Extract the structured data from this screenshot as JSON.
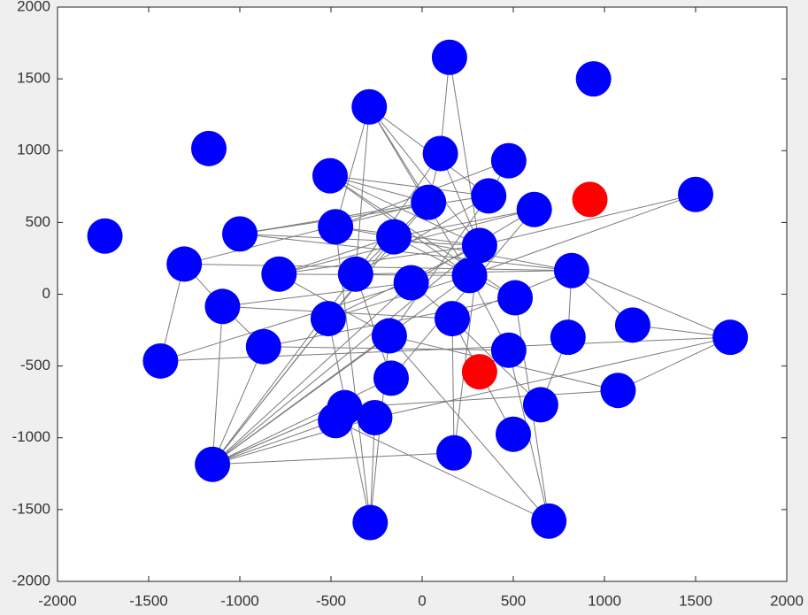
{
  "chart_data": {
    "type": "scatter",
    "x": [
      150,
      940,
      -290,
      -1170,
      100,
      475,
      -505,
      35,
      365,
      615,
      920,
      1500,
      -1740,
      -1000,
      -475,
      -155,
      315,
      -1305,
      -785,
      -365,
      -60,
      260,
      820,
      -1095,
      510,
      -515,
      165,
      -180,
      800,
      1155,
      1690,
      -870,
      475,
      -1435,
      315,
      -170,
      1075,
      650,
      -425,
      -260,
      -475,
      500,
      175,
      -1150,
      -285,
      695
    ],
    "values": [
      1650,
      1500,
      1305,
      1015,
      980,
      930,
      825,
      640,
      685,
      590,
      660,
      695,
      405,
      420,
      470,
      400,
      340,
      210,
      140,
      140,
      80,
      130,
      165,
      -85,
      -25,
      -170,
      -170,
      -290,
      -300,
      -215,
      -300,
      -365,
      -390,
      -465,
      -540,
      -585,
      -670,
      -770,
      -790,
      -860,
      -880,
      -975,
      -1105,
      -1185,
      -1590,
      -1580
    ],
    "colors": [
      "#0000ff",
      "#0000ff",
      "#0000ff",
      "#0000ff",
      "#0000ff",
      "#0000ff",
      "#0000ff",
      "#0000ff",
      "#0000ff",
      "#0000ff",
      "#ff0000",
      "#0000ff",
      "#0000ff",
      "#0000ff",
      "#0000ff",
      "#0000ff",
      "#0000ff",
      "#0000ff",
      "#0000ff",
      "#0000ff",
      "#0000ff",
      "#0000ff",
      "#0000ff",
      "#0000ff",
      "#0000ff",
      "#0000ff",
      "#0000ff",
      "#0000ff",
      "#0000ff",
      "#0000ff",
      "#0000ff",
      "#0000ff",
      "#0000ff",
      "#0000ff",
      "#ff0000",
      "#0000ff",
      "#0000ff",
      "#0000ff",
      "#0000ff",
      "#0000ff",
      "#0000ff",
      "#0000ff",
      "#0000ff",
      "#0000ff",
      "#0000ff",
      "#0000ff"
    ],
    "edges": [
      [
        0,
        4
      ],
      [
        0,
        16
      ],
      [
        2,
        7
      ],
      [
        2,
        14
      ],
      [
        2,
        19
      ],
      [
        2,
        21
      ],
      [
        2,
        8
      ],
      [
        2,
        16
      ],
      [
        4,
        7
      ],
      [
        4,
        19
      ],
      [
        4,
        16
      ],
      [
        5,
        8
      ],
      [
        5,
        14
      ],
      [
        6,
        8
      ],
      [
        6,
        7
      ],
      [
        6,
        16
      ],
      [
        6,
        21
      ],
      [
        6,
        24
      ],
      [
        7,
        13
      ],
      [
        7,
        17
      ],
      [
        7,
        19
      ],
      [
        7,
        25
      ],
      [
        8,
        13
      ],
      [
        8,
        19
      ],
      [
        8,
        27
      ],
      [
        9,
        15
      ],
      [
        9,
        18
      ],
      [
        9,
        20
      ],
      [
        11,
        16
      ],
      [
        11,
        21
      ],
      [
        13,
        16
      ],
      [
        13,
        22
      ],
      [
        14,
        16
      ],
      [
        14,
        22
      ],
      [
        15,
        18
      ],
      [
        15,
        24
      ],
      [
        16,
        18
      ],
      [
        16,
        25
      ],
      [
        17,
        22
      ],
      [
        17,
        23
      ],
      [
        17,
        33
      ],
      [
        18,
        21
      ],
      [
        18,
        27
      ],
      [
        19,
        22
      ],
      [
        19,
        35
      ],
      [
        20,
        23
      ],
      [
        20,
        26
      ],
      [
        21,
        25
      ],
      [
        21,
        32
      ],
      [
        22,
        26
      ],
      [
        22,
        30
      ],
      [
        22,
        28
      ],
      [
        23,
        26
      ],
      [
        23,
        31
      ],
      [
        24,
        31
      ],
      [
        26,
        34
      ],
      [
        26,
        42
      ],
      [
        27,
        36
      ],
      [
        28,
        37
      ],
      [
        29,
        30
      ],
      [
        29,
        22
      ],
      [
        30,
        33
      ],
      [
        31,
        32
      ],
      [
        32,
        45
      ],
      [
        33,
        20
      ],
      [
        34,
        41
      ],
      [
        36,
        30
      ],
      [
        36,
        38
      ],
      [
        37,
        26
      ],
      [
        38,
        43
      ],
      [
        39,
        44
      ],
      [
        40,
        45
      ],
      [
        40,
        43
      ],
      [
        42,
        16
      ],
      [
        43,
        15
      ],
      [
        43,
        19
      ],
      [
        43,
        20
      ],
      [
        43,
        21
      ],
      [
        43,
        23
      ],
      [
        43,
        25
      ],
      [
        43,
        27
      ],
      [
        43,
        31
      ],
      [
        43,
        35
      ],
      [
        43,
        38
      ],
      [
        43,
        39
      ],
      [
        43,
        16
      ],
      [
        43,
        42
      ],
      [
        44,
        25
      ],
      [
        44,
        27
      ],
      [
        44,
        14
      ],
      [
        45,
        24
      ],
      [
        45,
        27
      ],
      [
        35,
        9
      ],
      [
        39,
        30
      ]
    ],
    "edge_color": "#7a7a7a",
    "xlim": [
      -2000,
      2000
    ],
    "xticks": [
      -2000,
      -1500,
      -1000,
      -500,
      0,
      500,
      1000,
      1500,
      2000
    ],
    "ylim": [
      -2000,
      2000
    ],
    "yticks": [
      -2000,
      -1500,
      -1000,
      -500,
      0,
      500,
      1000,
      1500,
      2000
    ]
  }
}
